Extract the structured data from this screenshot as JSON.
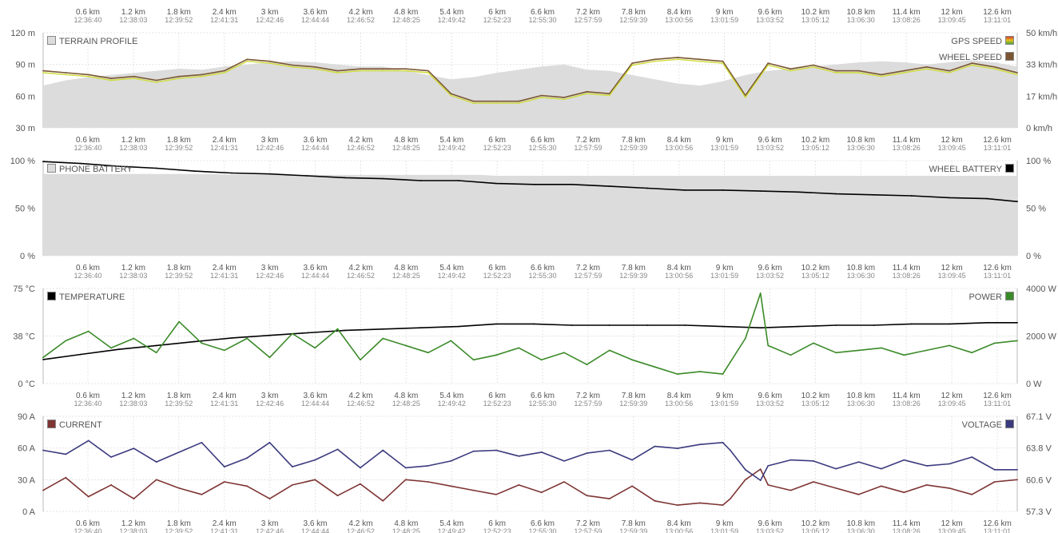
{
  "colors": {
    "terrain_fill": "#dcdcdc",
    "gps_speed": "#cddc39",
    "wheel_speed": "#7b5634",
    "phone_battery_fill": "#dcdcdc",
    "wheel_battery": "#000000",
    "temperature": "#000000",
    "power": "#3a8a28",
    "current": "#7e3534",
    "voltage": "#3a3a7e",
    "grid": "#e4e4e4",
    "tick_text": "#555555",
    "time_text": "#888888"
  },
  "shared_axis": {
    "distance_ticks": [
      "0.6 km",
      "1.2 km",
      "1.8 km",
      "2.4 km",
      "3 km",
      "3.6 km",
      "4.2 km",
      "4.8 km",
      "5.4 km",
      "6 km",
      "6.6 km",
      "7.2 km",
      "7.8 km",
      "8.4 km",
      "9 km",
      "9.6 km",
      "10.2 km",
      "10.8 km",
      "11.4 km",
      "12 km",
      "12.6 km"
    ],
    "time_ticks": [
      "12:36:40",
      "12:38:03",
      "12:39:52",
      "12:41:31",
      "12:42:46",
      "12:44:44",
      "12:46:52",
      "12:48:25",
      "12:49:42",
      "12:52:23",
      "12:55:30",
      "12:57:59",
      "12:59:39",
      "13:00:56",
      "13:01:59",
      "13:03:52",
      "13:05:12",
      "13:06:30",
      "13:08:26",
      "13:09:45",
      "13:11:01"
    ],
    "x_range_km": [
      0,
      12.9
    ]
  },
  "chart_data": [
    {
      "id": "elevation_speed",
      "type": "line",
      "left_axis": {
        "ticks": [
          "120 m",
          "90 m",
          "60 m",
          "30 m"
        ],
        "range": [
          30,
          120
        ]
      },
      "right_axis": {
        "ticks": [
          "50 km/h",
          "33 km/h",
          "17 km/h",
          "0 km/h"
        ],
        "range": [
          0,
          50
        ]
      },
      "legend_left": [
        {
          "label": "TERRAIN PROFILE",
          "color_key": "terrain_fill"
        }
      ],
      "legend_right": [
        {
          "label": "GPS SPEED",
          "color_key": "gps_speed",
          "gradient": true
        },
        {
          "label": "WHEEL SPEED",
          "color_key": "wheel_speed"
        }
      ],
      "series": [
        {
          "name": "TERRAIN PROFILE",
          "axis": "left",
          "kind": "area",
          "x": [
            0,
            0.3,
            0.6,
            0.9,
            1.2,
            1.5,
            1.8,
            2.1,
            2.4,
            2.7,
            3.0,
            3.3,
            3.6,
            3.9,
            4.2,
            4.5,
            4.8,
            5.1,
            5.4,
            5.7,
            6.0,
            6.3,
            6.6,
            6.9,
            7.2,
            7.5,
            7.8,
            8.1,
            8.4,
            8.7,
            9.0,
            9.3,
            9.6,
            9.9,
            10.2,
            10.5,
            10.8,
            11.1,
            11.4,
            11.7,
            12.0,
            12.3,
            12.6,
            12.9
          ],
          "y": [
            70,
            75,
            78,
            80,
            82,
            84,
            86,
            85,
            88,
            90,
            92,
            93,
            92,
            90,
            88,
            88,
            84,
            80,
            76,
            78,
            82,
            85,
            88,
            90,
            85,
            84,
            80,
            76,
            72,
            70,
            74,
            80,
            84,
            86,
            88,
            90,
            92,
            93,
            92,
            90,
            92,
            94,
            92,
            88
          ]
        },
        {
          "name": "WHEEL SPEED",
          "axis": "right",
          "kind": "line",
          "x": [
            0,
            0.3,
            0.6,
            0.9,
            1.2,
            1.5,
            1.8,
            2.1,
            2.4,
            2.7,
            3.0,
            3.3,
            3.6,
            3.9,
            4.2,
            4.5,
            4.8,
            5.1,
            5.4,
            5.7,
            6.0,
            6.3,
            6.6,
            6.9,
            7.2,
            7.5,
            7.8,
            8.1,
            8.4,
            8.7,
            9.0,
            9.3,
            9.6,
            9.9,
            10.2,
            10.5,
            10.8,
            11.1,
            11.4,
            11.7,
            12.0,
            12.3,
            12.6,
            12.9
          ],
          "y": [
            30,
            29,
            28,
            26,
            27,
            25,
            27,
            28,
            30,
            36,
            35,
            33,
            32,
            30,
            31,
            31,
            31,
            30,
            18,
            14,
            14,
            14,
            17,
            16,
            19,
            18,
            34,
            36,
            37,
            36,
            35,
            17,
            34,
            31,
            33,
            30,
            30,
            28,
            30,
            32,
            30,
            34,
            32,
            29
          ]
        },
        {
          "name": "GPS SPEED",
          "axis": "right",
          "kind": "line",
          "x": [
            0,
            0.3,
            0.6,
            0.9,
            1.2,
            1.5,
            1.8,
            2.1,
            2.4,
            2.7,
            3.0,
            3.3,
            3.6,
            3.9,
            4.2,
            4.5,
            4.8,
            5.1,
            5.4,
            5.7,
            6.0,
            6.3,
            6.6,
            6.9,
            7.2,
            7.5,
            7.8,
            8.1,
            8.4,
            8.7,
            9.0,
            9.3,
            9.6,
            9.9,
            10.2,
            10.5,
            10.8,
            11.1,
            11.4,
            11.7,
            12.0,
            12.3,
            12.6,
            12.9
          ],
          "y": [
            29,
            28,
            27,
            25,
            26,
            24,
            26,
            27,
            29,
            35,
            34,
            32,
            31,
            29,
            30,
            30,
            30,
            29,
            17,
            13,
            13,
            13,
            16,
            15,
            18,
            17,
            33,
            35,
            36,
            35,
            34,
            16,
            33,
            30,
            32,
            29,
            29,
            27,
            29,
            31,
            29,
            33,
            31,
            28
          ]
        }
      ]
    },
    {
      "id": "battery",
      "type": "line",
      "left_axis": {
        "ticks": [
          "100 %",
          "50 %",
          "0 %"
        ],
        "range": [
          0,
          100
        ]
      },
      "right_axis": {
        "ticks": [
          "100 %",
          "50 %",
          "0 %"
        ],
        "range": [
          0,
          100
        ]
      },
      "legend_left": [
        {
          "label": "PHONE BATTERY",
          "color_key": "phone_battery_fill"
        }
      ],
      "legend_right": [
        {
          "label": "WHEEL BATTERY",
          "color_key": "wheel_battery"
        }
      ],
      "series": [
        {
          "name": "PHONE BATTERY",
          "axis": "left",
          "kind": "area",
          "x": [
            0,
            0.5,
            1.0,
            2.0,
            3.0,
            4.0,
            5.0,
            5.8,
            6.0,
            8.0,
            10.0,
            12.0,
            12.9
          ],
          "y": [
            86,
            86,
            86,
            86,
            85,
            85,
            85,
            85,
            84,
            84,
            84,
            84,
            84
          ]
        },
        {
          "name": "WHEEL BATTERY",
          "axis": "right",
          "kind": "line",
          "x": [
            0,
            0.5,
            1.0,
            1.5,
            2.0,
            2.5,
            3.0,
            3.5,
            4.0,
            4.5,
            5.0,
            5.5,
            6.0,
            6.5,
            7.0,
            7.5,
            8.0,
            8.5,
            9.0,
            9.5,
            10.0,
            10.5,
            11.0,
            11.5,
            12.0,
            12.5,
            12.9
          ],
          "y": [
            99,
            97,
            94,
            92,
            89,
            87,
            86,
            84,
            82,
            81,
            79,
            79,
            76,
            75,
            75,
            73,
            71,
            69,
            69,
            68,
            67,
            65,
            64,
            63,
            61,
            60,
            57
          ]
        }
      ]
    },
    {
      "id": "temperature_power",
      "type": "line",
      "left_axis": {
        "ticks": [
          "75 °C",
          "38 °C",
          "0 °C"
        ],
        "range": [
          0,
          75
        ]
      },
      "right_axis": {
        "ticks": [
          "4000 W",
          "2000 W",
          "0 W"
        ],
        "range": [
          0,
          4000
        ]
      },
      "legend_left": [
        {
          "label": "TEMPERATURE",
          "color_key": "temperature"
        }
      ],
      "legend_right": [
        {
          "label": "POWER",
          "color_key": "power"
        }
      ],
      "series": [
        {
          "name": "TEMPERATURE",
          "axis": "left",
          "kind": "line",
          "x": [
            0,
            0.5,
            1.0,
            1.5,
            2.0,
            2.5,
            3.0,
            3.5,
            4.0,
            4.5,
            5.0,
            5.5,
            6.0,
            6.5,
            7.0,
            7.5,
            8.0,
            8.5,
            9.0,
            9.5,
            10.0,
            10.5,
            11.0,
            11.5,
            12.0,
            12.5,
            12.9
          ],
          "y": [
            19,
            23,
            27,
            30,
            33,
            36,
            38,
            40,
            42,
            43,
            44,
            45,
            47,
            47,
            46,
            46,
            46,
            46,
            45,
            44,
            45,
            46,
            46,
            47,
            47,
            48,
            48
          ]
        },
        {
          "name": "POWER",
          "axis": "right",
          "kind": "line",
          "x": [
            0,
            0.3,
            0.6,
            0.9,
            1.2,
            1.5,
            1.8,
            2.1,
            2.4,
            2.7,
            3.0,
            3.3,
            3.6,
            3.9,
            4.2,
            4.5,
            4.8,
            5.1,
            5.4,
            5.7,
            6.0,
            6.3,
            6.6,
            6.9,
            7.2,
            7.5,
            7.8,
            8.1,
            8.4,
            8.7,
            9.0,
            9.1,
            9.3,
            9.5,
            9.6,
            9.9,
            10.2,
            10.5,
            10.8,
            11.1,
            11.4,
            11.7,
            12.0,
            12.3,
            12.6,
            12.9
          ],
          "y": [
            1100,
            1800,
            2200,
            1500,
            1900,
            1300,
            2600,
            1700,
            1400,
            1900,
            1100,
            2100,
            1500,
            2300,
            1000,
            1900,
            1600,
            1300,
            1800,
            1000,
            1200,
            1500,
            1000,
            1300,
            800,
            1400,
            1000,
            700,
            400,
            500,
            400,
            900,
            1900,
            3800,
            1600,
            1200,
            1700,
            1300,
            1400,
            1500,
            1200,
            1400,
            1600,
            1300,
            1700,
            1800
          ]
        }
      ]
    },
    {
      "id": "current_voltage",
      "type": "line",
      "left_axis": {
        "ticks": [
          "90 A",
          "60 A",
          "30 A",
          "0 A"
        ],
        "range": [
          0,
          90
        ]
      },
      "right_axis": {
        "ticks": [
          "67.1 V",
          "63.8 V",
          "60.6 V",
          "57.3 V"
        ],
        "range": [
          57.3,
          67.1
        ]
      },
      "legend_left": [
        {
          "label": "CURRENT",
          "color_key": "current"
        }
      ],
      "legend_right": [
        {
          "label": "VOLTAGE",
          "color_key": "voltage"
        }
      ],
      "series": [
        {
          "name": "CURRENT",
          "axis": "left",
          "kind": "line",
          "x": [
            0,
            0.3,
            0.6,
            0.9,
            1.2,
            1.5,
            1.8,
            2.1,
            2.4,
            2.7,
            3.0,
            3.3,
            3.6,
            3.9,
            4.2,
            4.5,
            4.8,
            5.1,
            5.4,
            5.7,
            6.0,
            6.3,
            6.6,
            6.9,
            7.2,
            7.5,
            7.8,
            8.1,
            8.4,
            8.7,
            9.0,
            9.1,
            9.3,
            9.5,
            9.6,
            9.9,
            10.2,
            10.5,
            10.8,
            11.1,
            11.4,
            11.7,
            12.0,
            12.3,
            12.6,
            12.9
          ],
          "y": [
            20,
            32,
            14,
            25,
            12,
            30,
            22,
            16,
            28,
            24,
            12,
            25,
            30,
            15,
            26,
            10,
            30,
            28,
            24,
            20,
            16,
            25,
            18,
            28,
            15,
            12,
            24,
            10,
            6,
            8,
            6,
            12,
            30,
            40,
            25,
            20,
            28,
            22,
            16,
            24,
            18,
            25,
            22,
            16,
            28,
            30
          ]
        },
        {
          "name": "VOLTAGE",
          "axis": "right",
          "kind": "line",
          "x": [
            0,
            0.3,
            0.6,
            0.9,
            1.2,
            1.5,
            1.8,
            2.1,
            2.4,
            2.7,
            3.0,
            3.3,
            3.6,
            3.9,
            4.2,
            4.5,
            4.8,
            5.1,
            5.4,
            5.7,
            6.0,
            6.3,
            6.6,
            6.9,
            7.2,
            7.5,
            7.8,
            8.1,
            8.4,
            8.7,
            9.0,
            9.1,
            9.3,
            9.5,
            9.6,
            9.9,
            10.2,
            10.5,
            10.8,
            11.1,
            11.4,
            11.7,
            12.0,
            12.3,
            12.6,
            12.9
          ],
          "y": [
            63.6,
            63.2,
            64.6,
            62.9,
            63.8,
            62.4,
            63.4,
            64.4,
            61.9,
            62.8,
            64.4,
            61.9,
            62.6,
            63.7,
            61.8,
            63.6,
            61.8,
            62.0,
            62.5,
            63.5,
            63.6,
            63.0,
            63.4,
            62.5,
            63.3,
            63.6,
            62.6,
            64.0,
            63.8,
            64.2,
            64.4,
            63.6,
            61.6,
            60.5,
            62.0,
            62.6,
            62.5,
            61.7,
            62.4,
            61.7,
            62.6,
            62.0,
            62.2,
            62.9,
            61.6,
            61.6
          ]
        }
      ]
    }
  ]
}
